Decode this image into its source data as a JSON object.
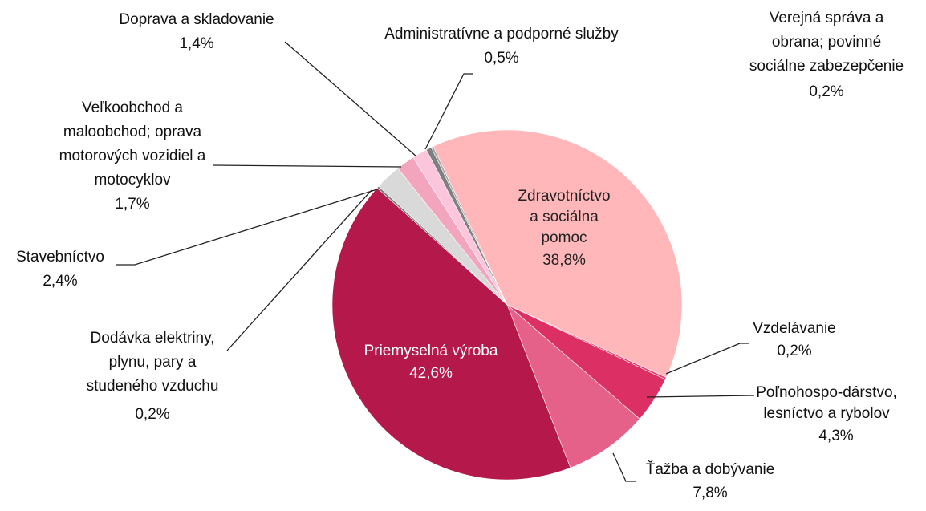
{
  "chart_data": {
    "type": "pie",
    "categories": [
      "Zdravotníctvo a sociálna pomoc",
      "Vzdelávanie",
      "Poľnohospo-dárstvo, lesníctvo a  rybolov",
      "Ťažba a dobývanie",
      "Priemyselná výroba",
      "Dodávka elektriny, plynu, pary a studeného vzduchu",
      "Stavebníctvo",
      "Veľkoobchod a maloobchod; oprava motorových vozidiel a motocyklov",
      "Doprava a skladovanie",
      "Administratívne a podporné služby",
      "Verejná správa a obrana; povinné sociálne zabezepčenie"
    ],
    "values": [
      38.8,
      0.2,
      4.3,
      7.8,
      42.6,
      0.2,
      2.4,
      1.7,
      1.4,
      0.5,
      0.2
    ],
    "value_labels": [
      "38,8%",
      "0,2%",
      "4,3%",
      "7,8%",
      "42,6%",
      "0,2%",
      "2,4%",
      "1,7%",
      "1,4%",
      "0,5%",
      "0,2%"
    ],
    "colors": [
      "#ffb7ba",
      "#e23a6e",
      "#dc2f64",
      "#e6618a",
      "#b5184b",
      "#7a7a7a",
      "#d9d9d9",
      "#f3a5bd",
      "#fbc6dc",
      "#7f7f7f",
      "#a6a6a6"
    ]
  }
}
